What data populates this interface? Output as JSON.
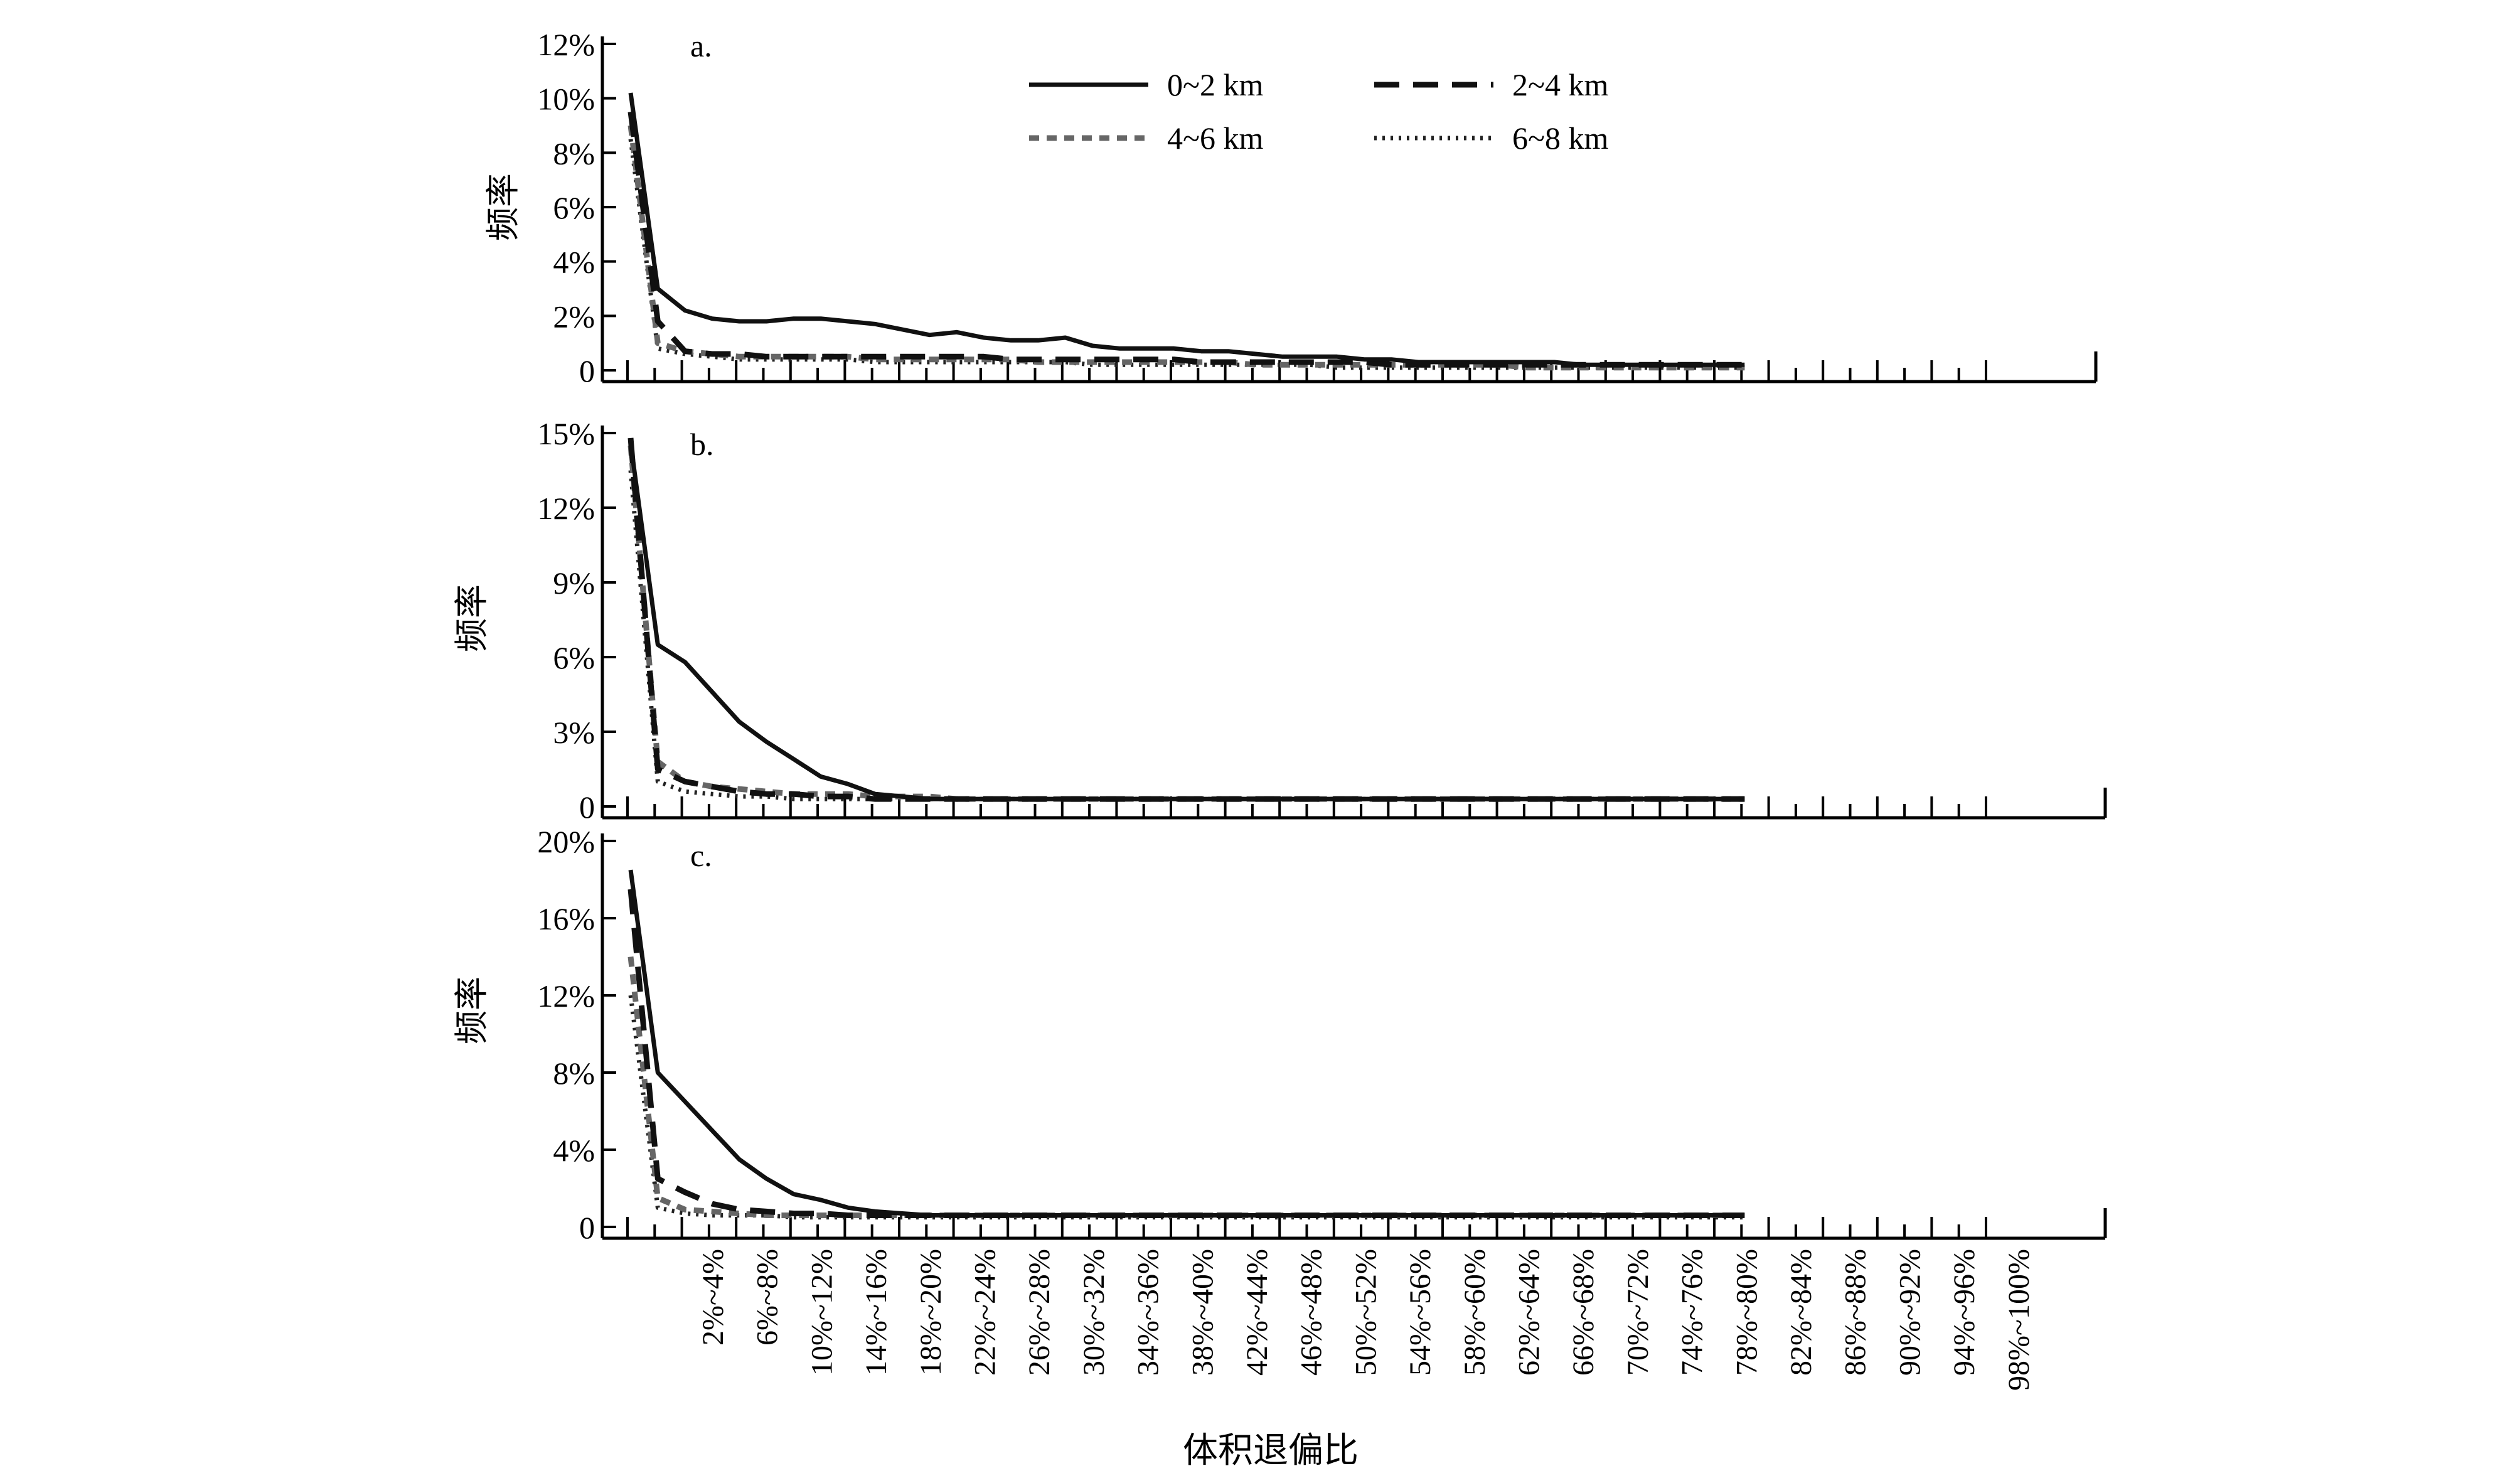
{
  "xlabel": "体积退偏比",
  "ylabel": "频率",
  "x_ticklabels": [
    "2%~4%",
    "6%~8%",
    "10%~12%",
    "14%~16%",
    "18%~20%",
    "22%~24%",
    "26%~28%",
    "30%~32%",
    "34%~36%",
    "38%~40%",
    "42%~44%",
    "46%~48%",
    "50%~52%",
    "54%~56%",
    "58%~60%",
    "62%~64%",
    "66%~68%",
    "70%~72%",
    "74%~76%",
    "78%~80%",
    "82%~84%",
    "86%~88%",
    "90%~92%",
    "94%~96%",
    "98%~100%"
  ],
  "legend": {
    "entries": [
      {
        "label": "0~2 km",
        "style": "solid"
      },
      {
        "label": "2~4 km",
        "style": "long-dash"
      },
      {
        "label": "4~6 km",
        "style": "short-dash-gray"
      },
      {
        "label": "6~8 km",
        "style": "dotted"
      }
    ],
    "position": "top-center (panel a)"
  },
  "colors": {
    "solid": "#111111",
    "long_dash": "#111111",
    "short_dash": "#666666",
    "dotted": "#222222"
  },
  "chart_data": [
    {
      "panel": "a.",
      "type": "line",
      "ylabel": "频率",
      "ylim": [
        0,
        12
      ],
      "yticklabels": [
        "0",
        "2%",
        "4%",
        "6%",
        "8%",
        "10%",
        "12%"
      ],
      "x_bins": "50 bins of 2% (0%~2% … 98%~100%), data for first 42 bins",
      "series": [
        {
          "name": "0~2 km",
          "values": [
            10.2,
            3.0,
            2.2,
            1.9,
            1.8,
            1.8,
            1.9,
            1.9,
            1.8,
            1.7,
            1.5,
            1.3,
            1.4,
            1.2,
            1.1,
            1.1,
            1.2,
            0.9,
            0.8,
            0.8,
            0.8,
            0.7,
            0.7,
            0.6,
            0.5,
            0.5,
            0.5,
            0.4,
            0.4,
            0.3,
            0.3,
            0.3,
            0.3,
            0.3,
            0.3,
            0.2,
            0.2,
            0.2,
            0.2,
            0.2,
            0.2,
            0.2
          ]
        },
        {
          "name": "2~4 km",
          "values": [
            9.5,
            1.8,
            0.7,
            0.6,
            0.6,
            0.5,
            0.5,
            0.5,
            0.5,
            0.5,
            0.5,
            0.5,
            0.5,
            0.5,
            0.4,
            0.4,
            0.4,
            0.4,
            0.4,
            0.4,
            0.4,
            0.3,
            0.3,
            0.3,
            0.3,
            0.3,
            0.3,
            0.3,
            0.2,
            0.2,
            0.2,
            0.2,
            0.2,
            0.2,
            0.2,
            0.2,
            0.2,
            0.2,
            0.2,
            0.2,
            0.2,
            0.2
          ]
        },
        {
          "name": "4~6 km",
          "values": [
            9.0,
            1.0,
            0.7,
            0.6,
            0.5,
            0.5,
            0.5,
            0.5,
            0.5,
            0.4,
            0.4,
            0.4,
            0.4,
            0.4,
            0.4,
            0.3,
            0.3,
            0.3,
            0.3,
            0.3,
            0.3,
            0.3,
            0.3,
            0.2,
            0.2,
            0.2,
            0.2,
            0.2,
            0.2,
            0.2,
            0.2,
            0.2,
            0.2,
            0.1,
            0.1,
            0.1,
            0.1,
            0.1,
            0.1,
            0.1,
            0.1,
            0.1
          ]
        },
        {
          "name": "6~8 km",
          "values": [
            8.5,
            0.8,
            0.6,
            0.5,
            0.4,
            0.4,
            0.4,
            0.4,
            0.4,
            0.3,
            0.3,
            0.3,
            0.3,
            0.3,
            0.3,
            0.3,
            0.3,
            0.2,
            0.2,
            0.2,
            0.2,
            0.2,
            0.2,
            0.2,
            0.2,
            0.2,
            0.1,
            0.1,
            0.1,
            0.1,
            0.1,
            0.1,
            0.1,
            0.1,
            0.1,
            0.1,
            0.1,
            0.1,
            0.1,
            0.1,
            0.1,
            0.1
          ]
        }
      ]
    },
    {
      "panel": "b.",
      "type": "line",
      "ylabel": "频率",
      "ylim": [
        0,
        15
      ],
      "yticklabels": [
        "0",
        "3%",
        "6%",
        "9%",
        "12%",
        "15%"
      ],
      "series": [
        {
          "name": "0~2 km",
          "values": [
            14.6,
            6.5,
            5.8,
            4.6,
            3.4,
            2.6,
            1.9,
            1.2,
            0.9,
            0.5,
            0.4,
            0.3,
            0.3,
            0.3,
            0.3,
            0.3,
            0.3,
            0.3,
            0.3,
            0.3,
            0.3,
            0.3,
            0.3,
            0.3,
            0.3,
            0.3,
            0.3,
            0.3,
            0.3,
            0.3,
            0.3,
            0.3,
            0.3,
            0.3,
            0.3,
            0.3,
            0.3,
            0.3,
            0.3,
            0.3,
            0.3,
            0.3
          ]
        },
        {
          "name": "2~4 km",
          "values": [
            14.8,
            1.5,
            1.0,
            0.8,
            0.6,
            0.5,
            0.5,
            0.4,
            0.4,
            0.3,
            0.3,
            0.3,
            0.3,
            0.3,
            0.3,
            0.3,
            0.3,
            0.3,
            0.3,
            0.3,
            0.3,
            0.3,
            0.3,
            0.3,
            0.3,
            0.3,
            0.3,
            0.3,
            0.3,
            0.3,
            0.3,
            0.3,
            0.3,
            0.3,
            0.3,
            0.3,
            0.3,
            0.3,
            0.3,
            0.3,
            0.3,
            0.3
          ]
        },
        {
          "name": "4~6 km",
          "values": [
            14.5,
            1.8,
            1.0,
            0.8,
            0.7,
            0.6,
            0.5,
            0.5,
            0.5,
            0.4,
            0.4,
            0.4,
            0.3,
            0.3,
            0.3,
            0.3,
            0.3,
            0.3,
            0.3,
            0.3,
            0.3,
            0.3,
            0.3,
            0.3,
            0.3,
            0.3,
            0.3,
            0.3,
            0.3,
            0.3,
            0.3,
            0.3,
            0.3,
            0.3,
            0.3,
            0.3,
            0.3,
            0.3,
            0.3,
            0.3,
            0.3,
            0.3
          ]
        },
        {
          "name": "6~8 km",
          "values": [
            13.5,
            1.0,
            0.6,
            0.5,
            0.4,
            0.4,
            0.3,
            0.3,
            0.3,
            0.3,
            0.3,
            0.3,
            0.3,
            0.3,
            0.3,
            0.3,
            0.3,
            0.3,
            0.3,
            0.3,
            0.3,
            0.3,
            0.3,
            0.3,
            0.3,
            0.3,
            0.3,
            0.3,
            0.3,
            0.3,
            0.3,
            0.3,
            0.3,
            0.3,
            0.3,
            0.3,
            0.3,
            0.3,
            0.3,
            0.3,
            0.3,
            0.3
          ]
        }
      ]
    },
    {
      "panel": "c.",
      "type": "line",
      "ylabel": "频率",
      "ylim": [
        0,
        20
      ],
      "yticklabels": [
        "0",
        "4%",
        "8%",
        "12%",
        "16%",
        "20%"
      ],
      "series": [
        {
          "name": "0~2 km",
          "values": [
            18.5,
            8.0,
            6.5,
            5.0,
            3.5,
            2.5,
            1.7,
            1.4,
            1.0,
            0.8,
            0.7,
            0.6,
            0.6,
            0.6,
            0.6,
            0.6,
            0.6,
            0.6,
            0.6,
            0.6,
            0.6,
            0.6,
            0.6,
            0.6,
            0.6,
            0.6,
            0.6,
            0.6,
            0.6,
            0.6,
            0.6,
            0.6,
            0.6,
            0.6,
            0.6,
            0.6,
            0.6,
            0.6,
            0.6,
            0.6,
            0.6,
            0.6
          ]
        },
        {
          "name": "2~4 km",
          "values": [
            17.5,
            2.5,
            1.8,
            1.2,
            0.9,
            0.8,
            0.7,
            0.7,
            0.6,
            0.6,
            0.6,
            0.6,
            0.6,
            0.6,
            0.6,
            0.6,
            0.6,
            0.6,
            0.6,
            0.6,
            0.6,
            0.6,
            0.6,
            0.6,
            0.6,
            0.6,
            0.6,
            0.6,
            0.6,
            0.6,
            0.6,
            0.6,
            0.6,
            0.6,
            0.6,
            0.6,
            0.6,
            0.6,
            0.6,
            0.6,
            0.6,
            0.6
          ]
        },
        {
          "name": "4~6 km",
          "values": [
            14.0,
            1.5,
            0.9,
            0.8,
            0.7,
            0.6,
            0.6,
            0.6,
            0.6,
            0.6,
            0.6,
            0.6,
            0.6,
            0.6,
            0.6,
            0.6,
            0.6,
            0.6,
            0.6,
            0.6,
            0.6,
            0.6,
            0.6,
            0.6,
            0.6,
            0.6,
            0.6,
            0.6,
            0.6,
            0.6,
            0.6,
            0.6,
            0.6,
            0.6,
            0.6,
            0.6,
            0.6,
            0.6,
            0.6,
            0.6,
            0.6,
            0.6
          ]
        },
        {
          "name": "6~8 km",
          "values": [
            12.0,
            1.0,
            0.7,
            0.6,
            0.6,
            0.6,
            0.5,
            0.5,
            0.5,
            0.5,
            0.5,
            0.5,
            0.5,
            0.5,
            0.5,
            0.5,
            0.5,
            0.5,
            0.5,
            0.5,
            0.5,
            0.5,
            0.5,
            0.5,
            0.5,
            0.5,
            0.5,
            0.5,
            0.5,
            0.5,
            0.5,
            0.5,
            0.5,
            0.5,
            0.5,
            0.5,
            0.5,
            0.5,
            0.5,
            0.5,
            0.5,
            0.5
          ]
        }
      ]
    }
  ]
}
